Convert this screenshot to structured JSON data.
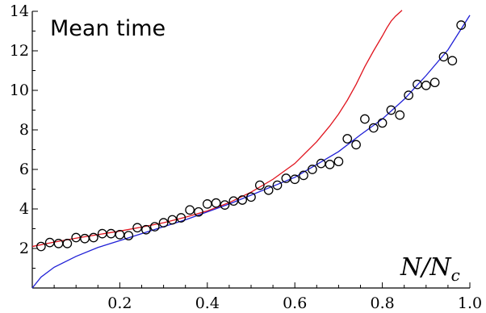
{
  "chart_data": {
    "type": "scatter",
    "title": "Mean time",
    "xlabel": "N/N_c",
    "xlabel_main": "N/N",
    "xlabel_sub": "c",
    "ylabel": "",
    "xlim": [
      0,
      1.0
    ],
    "ylim": [
      0,
      14
    ],
    "xticks": [
      0.2,
      0.4,
      0.6,
      0.8,
      1.0
    ],
    "xtick_labels": [
      "0.2",
      "0.4",
      "0.6",
      "0.8",
      "1.0"
    ],
    "yticks": [
      2,
      4,
      6,
      8,
      10,
      12,
      14
    ],
    "ytick_labels": [
      "2",
      "4",
      "6",
      "8",
      "10",
      "12",
      "14"
    ],
    "grid": false,
    "legend": "none",
    "series": [
      {
        "kind": "points",
        "color": "#000000",
        "x": [
          0.02,
          0.04,
          0.06,
          0.08,
          0.1,
          0.12,
          0.14,
          0.16,
          0.18,
          0.2,
          0.22,
          0.24,
          0.26,
          0.28,
          0.3,
          0.32,
          0.34,
          0.36,
          0.38,
          0.4,
          0.42,
          0.44,
          0.46,
          0.48,
          0.5,
          0.52,
          0.54,
          0.56,
          0.58,
          0.6,
          0.62,
          0.64,
          0.66,
          0.68,
          0.7,
          0.72,
          0.74,
          0.76,
          0.78,
          0.8,
          0.82,
          0.84,
          0.86,
          0.88,
          0.9,
          0.92,
          0.94,
          0.96,
          0.98
        ],
        "y": [
          2.1,
          2.3,
          2.25,
          2.25,
          2.55,
          2.5,
          2.55,
          2.75,
          2.75,
          2.7,
          2.65,
          3.05,
          2.95,
          3.1,
          3.3,
          3.45,
          3.55,
          3.95,
          3.85,
          4.25,
          4.3,
          4.2,
          4.4,
          4.45,
          4.6,
          5.2,
          4.95,
          5.2,
          5.55,
          5.5,
          5.7,
          6.0,
          6.3,
          6.25,
          6.4,
          7.55,
          7.25,
          8.55,
          8.1,
          8.35,
          9.0,
          8.75,
          9.75,
          10.3,
          10.25,
          10.4,
          11.7,
          11.5,
          13.3
        ]
      },
      {
        "kind": "line",
        "color": "#e0141e",
        "x": [
          0.0,
          0.05,
          0.1,
          0.15,
          0.2,
          0.25,
          0.3,
          0.35,
          0.4,
          0.45,
          0.5,
          0.55,
          0.6,
          0.65,
          0.68,
          0.7,
          0.72,
          0.74,
          0.76,
          0.78,
          0.8,
          0.81,
          0.82,
          0.83,
          0.84,
          0.845
        ],
        "y": [
          2.1,
          2.32,
          2.52,
          2.7,
          2.88,
          3.08,
          3.3,
          3.58,
          3.9,
          4.32,
          4.85,
          5.5,
          6.3,
          7.4,
          8.2,
          8.8,
          9.5,
          10.3,
          11.2,
          12.0,
          12.75,
          13.15,
          13.5,
          13.75,
          13.95,
          14.05
        ]
      },
      {
        "kind": "line",
        "color": "#1f1fd6",
        "x": [
          0.0,
          0.02,
          0.05,
          0.1,
          0.15,
          0.2,
          0.25,
          0.3,
          0.35,
          0.4,
          0.45,
          0.5,
          0.55,
          0.6,
          0.65,
          0.7,
          0.75,
          0.8,
          0.85,
          0.9,
          0.95,
          1.0
        ],
        "y": [
          0.0,
          0.55,
          1.05,
          1.6,
          2.05,
          2.4,
          2.75,
          3.1,
          3.45,
          3.85,
          4.25,
          4.7,
          5.15,
          5.6,
          6.25,
          6.9,
          7.75,
          8.55,
          9.55,
          10.75,
          12.05,
          13.8
        ]
      }
    ]
  }
}
